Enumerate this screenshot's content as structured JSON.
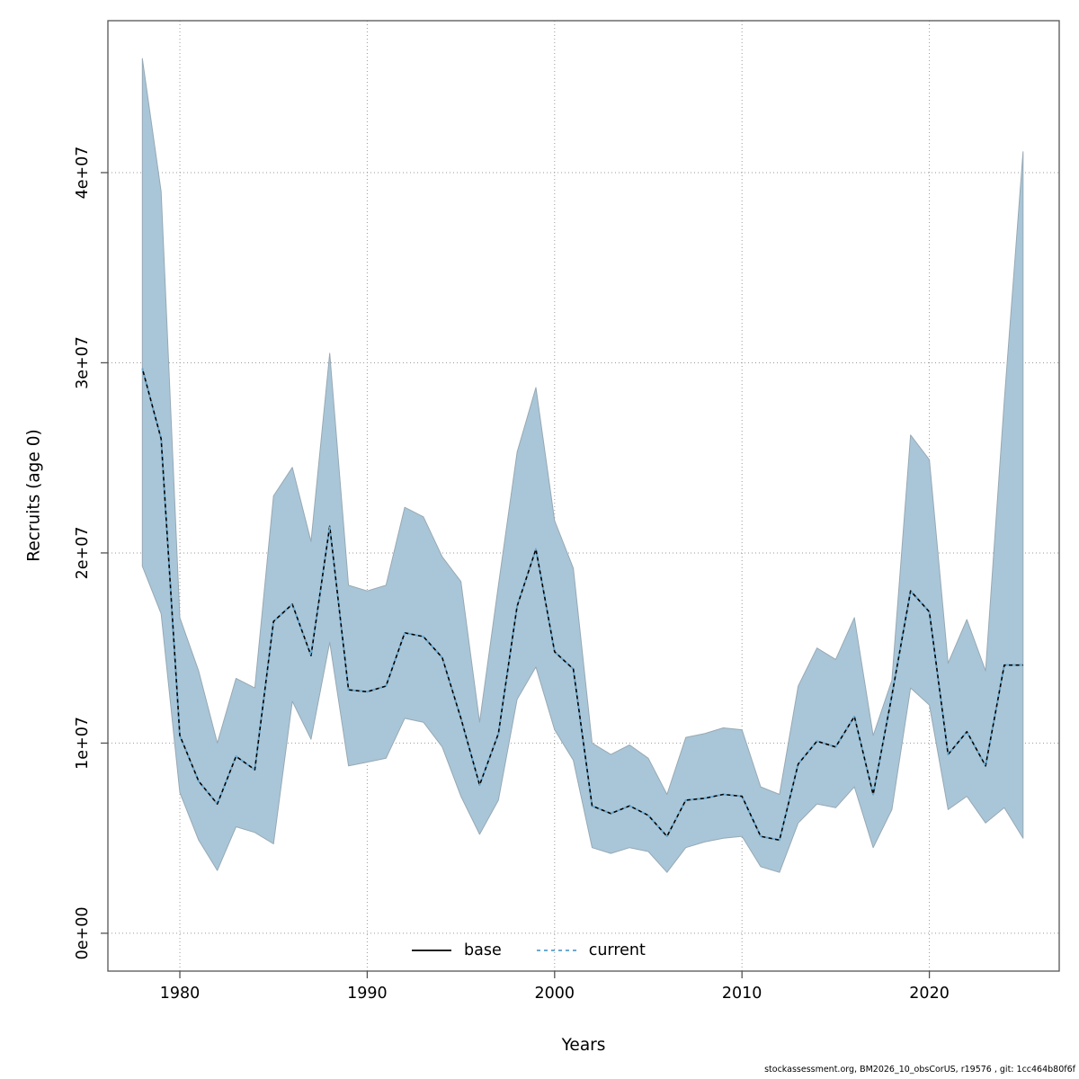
{
  "chart_data": {
    "type": "line",
    "title": "",
    "xlabel": "Years",
    "ylabel": "Recruits (age 0)",
    "legend_position": "bottom-center-inside",
    "grid": "dotted",
    "xlim": [
      1976.16,
      2026.93
    ],
    "ylim": [
      -1990000,
      47990000
    ],
    "xticks": [
      1980,
      1990,
      2000,
      2010,
      2020
    ],
    "yticks": [
      {
        "value": 0,
        "label": "0e+00"
      },
      {
        "value": 10000000,
        "label": "1e+07"
      },
      {
        "value": 20000000,
        "label": "2e+07"
      },
      {
        "value": 30000000,
        "label": "3e+07"
      },
      {
        "value": 40000000,
        "label": "4e+07"
      }
    ],
    "x": [
      1978,
      1979,
      1980,
      1981,
      1982,
      1983,
      1984,
      1985,
      1986,
      1987,
      1988,
      1989,
      1990,
      1991,
      1992,
      1993,
      1994,
      1995,
      1996,
      1997,
      1998,
      1999,
      2000,
      2001,
      2002,
      2003,
      2004,
      2005,
      2006,
      2007,
      2008,
      2009,
      2010,
      2011,
      2012,
      2013,
      2014,
      2015,
      2016,
      2017,
      2018,
      2019,
      2020,
      2021,
      2022,
      2023,
      2024,
      2025
    ],
    "series": [
      {
        "name": "base",
        "style": "solid",
        "values": [
          29700000,
          26000000,
          10400000,
          8000000,
          6800000,
          9300000,
          8600000,
          16400000,
          17300000,
          14600000,
          21400000,
          12800000,
          12700000,
          13000000,
          15800000,
          15600000,
          14500000,
          11300000,
          7800000,
          10500000,
          17200000,
          20200000,
          14800000,
          13900000,
          6700000,
          6300000,
          6700000,
          6200000,
          5100000,
          7000000,
          7100000,
          7300000,
          7200000,
          5100000,
          4900000,
          8900000,
          10100000,
          9800000,
          11400000,
          7300000,
          12500000,
          18000000,
          16900000,
          9400000,
          10600000,
          8800000,
          14100000,
          14100000
        ]
      },
      {
        "name": "current",
        "style": "dashed",
        "values": [
          29700000,
          26000000,
          10400000,
          8000000,
          6800000,
          9300000,
          8600000,
          16400000,
          17300000,
          14600000,
          21400000,
          12800000,
          12700000,
          13000000,
          15800000,
          15600000,
          14500000,
          11300000,
          7800000,
          10500000,
          17200000,
          20200000,
          14800000,
          13900000,
          6700000,
          6300000,
          6700000,
          6200000,
          5100000,
          7000000,
          7100000,
          7300000,
          7200000,
          5100000,
          4900000,
          8900000,
          10100000,
          9800000,
          11400000,
          7300000,
          12500000,
          18000000,
          16900000,
          9400000,
          10600000,
          8800000,
          14100000,
          14100000
        ]
      }
    ],
    "ci_upper": [
      46000000,
      39000000,
      16600000,
      13800000,
      10000000,
      13400000,
      12900000,
      23000000,
      24500000,
      20600000,
      30500000,
      18300000,
      18000000,
      18300000,
      22400000,
      21900000,
      19800000,
      18500000,
      11100000,
      18300000,
      25300000,
      28700000,
      21700000,
      19200000,
      10000000,
      9400000,
      9900000,
      9200000,
      7300000,
      10300000,
      10500000,
      10800000,
      10700000,
      7700000,
      7300000,
      13000000,
      15000000,
      14400000,
      16600000,
      10400000,
      13300000,
      26200000,
      24900000,
      14200000,
      16500000,
      13800000,
      28000000,
      41100000
    ],
    "ci_lower": [
      19300000,
      16800000,
      7400000,
      4900000,
      3300000,
      5600000,
      5300000,
      4700000,
      12200000,
      10200000,
      15300000,
      8800000,
      9000000,
      9200000,
      11300000,
      11100000,
      9800000,
      7200000,
      5200000,
      7000000,
      12300000,
      14000000,
      10700000,
      9100000,
      4500000,
      4200000,
      4500000,
      4300000,
      3200000,
      4500000,
      4800000,
      5000000,
      5100000,
      3500000,
      3200000,
      5800000,
      6800000,
      6600000,
      7700000,
      4500000,
      6500000,
      12900000,
      12000000,
      6500000,
      7200000,
      5800000,
      6600000,
      5000000
    ]
  },
  "legend": {
    "items": [
      {
        "label": "base"
      },
      {
        "label": "current"
      }
    ]
  },
  "footer": "stockassessment.org, BM2026_10_obsCorUS, r19576 , git: 1cc464b80f6f",
  "colors": {
    "band_fill": "#a9c6d8",
    "band_border": "#97a9b4",
    "base_line": "#000000",
    "current_line": "#6aabd2",
    "grid": "#999999",
    "frame": "#545454",
    "tick": "#545454",
    "text": "#000000"
  }
}
